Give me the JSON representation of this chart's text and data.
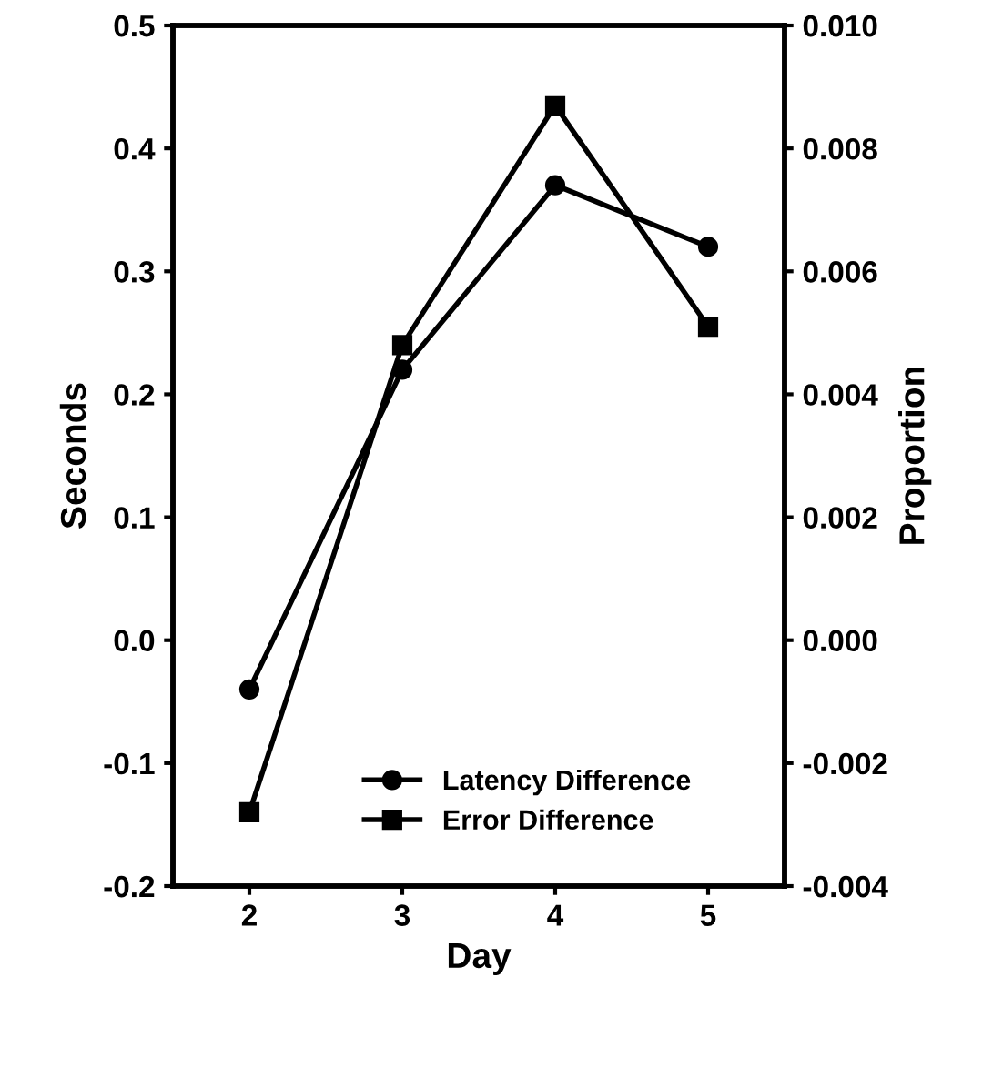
{
  "chart_data": {
    "type": "line",
    "xlabel": "Day",
    "ylabel": "Seconds",
    "y2label": "Proportion",
    "x": [
      2,
      3,
      4,
      5
    ],
    "xlim": [
      1.5,
      5.5
    ],
    "xticks": [
      2,
      3,
      4,
      5
    ],
    "ylim": [
      -0.2,
      0.5
    ],
    "yticks": [
      {
        "value": -0.2,
        "label": "-0.2"
      },
      {
        "value": -0.1,
        "label": "-0.1"
      },
      {
        "value": 0.0,
        "label": "0.0"
      },
      {
        "value": 0.1,
        "label": "0.1"
      },
      {
        "value": 0.2,
        "label": "0.2"
      },
      {
        "value": 0.3,
        "label": "0.3"
      },
      {
        "value": 0.4,
        "label": "0.4"
      },
      {
        "value": 0.5,
        "label": "0.5"
      }
    ],
    "y2lim": [
      -0.004,
      0.01
    ],
    "y2ticks": [
      {
        "value": -0.004,
        "label": "-0.004"
      },
      {
        "value": -0.002,
        "label": "-0.002"
      },
      {
        "value": 0.0,
        "label": "0.000"
      },
      {
        "value": 0.002,
        "label": "0.002"
      },
      {
        "value": 0.004,
        "label": "0.004"
      },
      {
        "value": 0.006,
        "label": "0.006"
      },
      {
        "value": 0.008,
        "label": "0.008"
      },
      {
        "value": 0.01,
        "label": "0.010"
      }
    ],
    "series": [
      {
        "name": "Latency Difference",
        "color": "#000000",
        "marker": "circle",
        "values": [
          -0.04,
          0.22,
          0.37,
          0.32
        ]
      },
      {
        "name": "Error Difference",
        "color": "#000000",
        "marker": "square",
        "axis": "y2",
        "values": [
          -0.0028,
          0.0048,
          0.0087,
          0.0051
        ]
      }
    ],
    "legend": "bottom",
    "grid": false
  }
}
